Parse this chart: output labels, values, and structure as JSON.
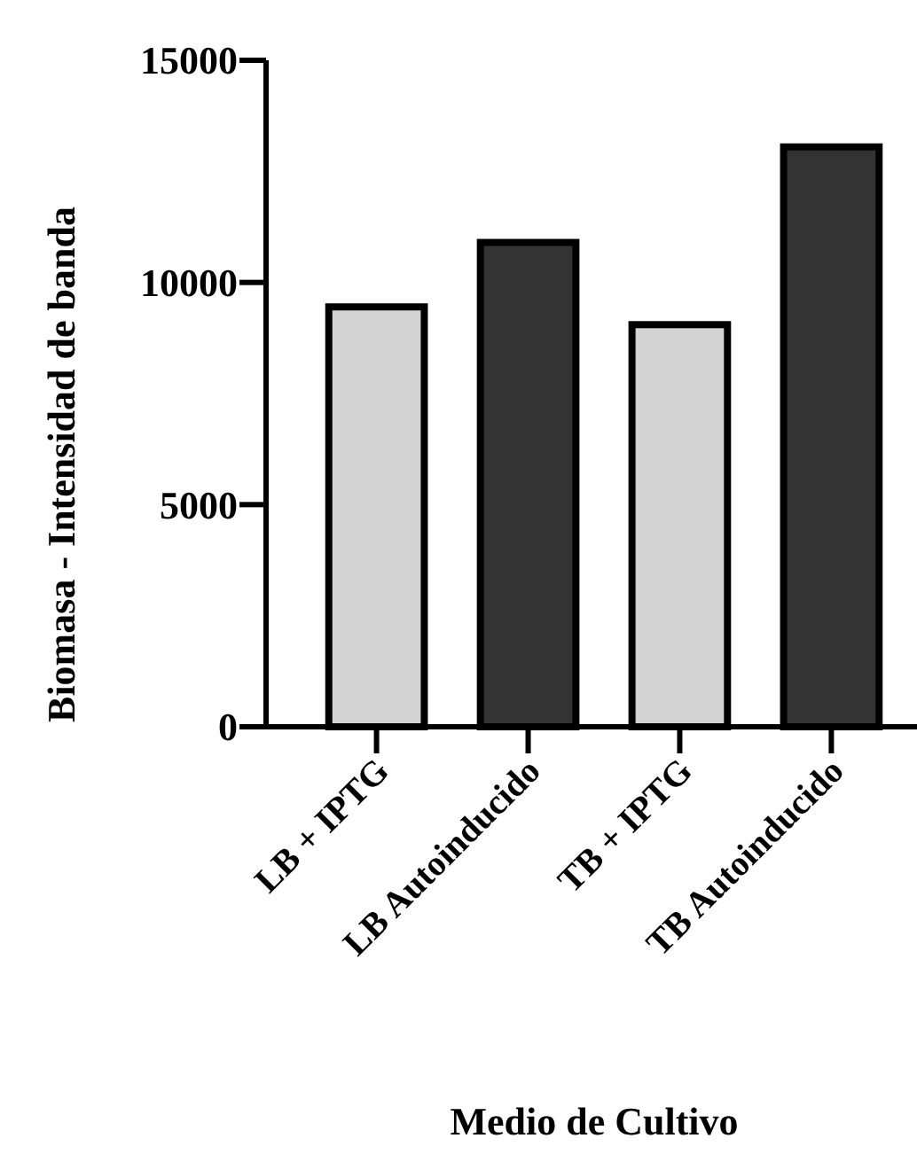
{
  "chart_data": {
    "type": "bar",
    "categories": [
      "LB + IPTG",
      "LB Autoinducido",
      "TB + IPTG",
      "TB Autoinducido"
    ],
    "values": [
      9450,
      10900,
      9050,
      13050
    ],
    "colors": [
      "#d3d3d3",
      "#333333",
      "#d3d3d3",
      "#333333"
    ],
    "ylim": [
      0,
      15000
    ],
    "yticks": [
      0,
      5000,
      10000,
      15000
    ],
    "xlabel": "Medio de Cultivo",
    "ylabel": "Biomasa - Intensidad de banda"
  }
}
